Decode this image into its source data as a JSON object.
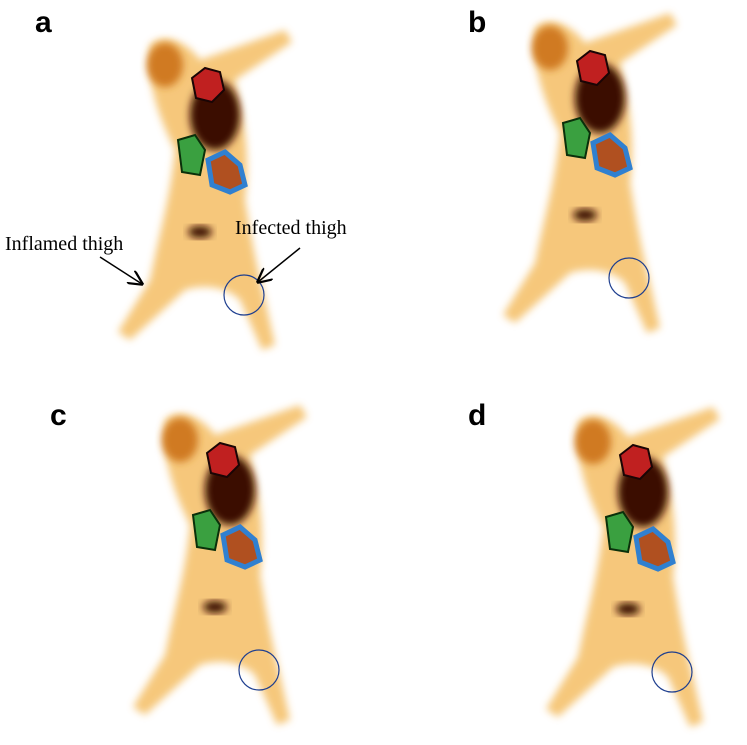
{
  "panels": [
    {
      "label": "a",
      "annotations": [
        "Inflamed thigh",
        "Infected thigh"
      ]
    },
    {
      "label": "b"
    },
    {
      "label": "c"
    },
    {
      "label": "d"
    }
  ]
}
